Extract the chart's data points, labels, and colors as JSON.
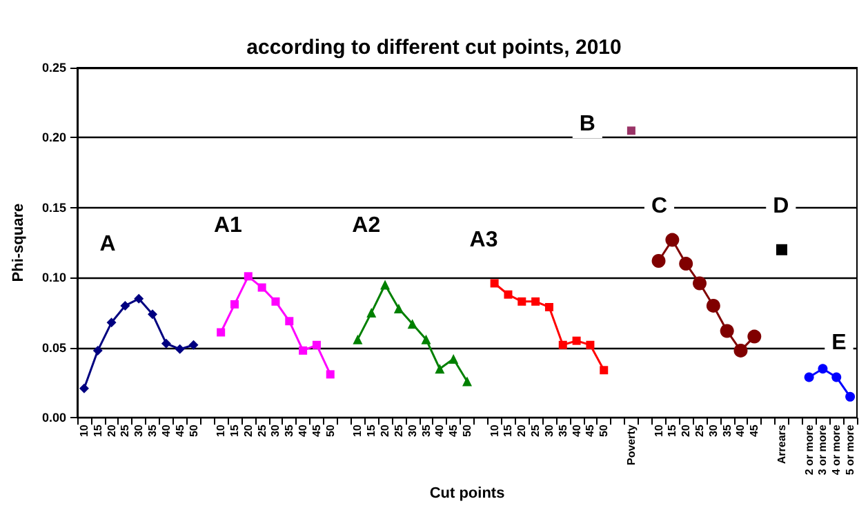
{
  "chart_data": {
    "type": "line",
    "title": "according to different cut points, 2010",
    "xlabel": "Cut points",
    "ylabel": "Phi-square",
    "categories": [
      "10",
      "15",
      "20",
      "25",
      "30",
      "35",
      "40",
      "45",
      "50",
      null,
      "10",
      "15",
      "20",
      "25",
      "30",
      "35",
      "40",
      "45",
      "50",
      null,
      "10",
      "15",
      "20",
      "25",
      "30",
      "35",
      "40",
      "45",
      "50",
      null,
      "10",
      "15",
      "20",
      "25",
      "30",
      "35",
      "40",
      "45",
      "50",
      null,
      "Poverty",
      null,
      "10",
      "15",
      "20",
      "25",
      "30",
      "35",
      "40",
      "45",
      null,
      "Arrears",
      null,
      "2 or more",
      "3 or more",
      "4 or more",
      "5 or more"
    ],
    "series": [
      {
        "color": "#000080",
        "marker": "diamond",
        "values": [
          0.021,
          0.048,
          0.068,
          0.08,
          0.085,
          0.074,
          0.053,
          0.049,
          0.052,
          null,
          null,
          null,
          null,
          null,
          null,
          null,
          null,
          null,
          null,
          null,
          null,
          null,
          null,
          null,
          null,
          null,
          null,
          null,
          null,
          null,
          null,
          null,
          null,
          null,
          null,
          null,
          null,
          null,
          null,
          null,
          null,
          null,
          null,
          null,
          null,
          null,
          null,
          null,
          null,
          null,
          null,
          null,
          null,
          null,
          null,
          null,
          null
        ]
      },
      {
        "color": "#ff00ff",
        "marker": "square",
        "values": [
          null,
          null,
          null,
          null,
          null,
          null,
          null,
          null,
          null,
          null,
          0.061,
          0.081,
          0.101,
          0.093,
          0.083,
          0.069,
          0.048,
          0.052,
          0.031,
          null,
          null,
          null,
          null,
          null,
          null,
          null,
          null,
          null,
          null,
          null,
          null,
          null,
          null,
          null,
          null,
          null,
          null,
          null,
          null,
          null,
          null,
          null,
          null,
          null,
          null,
          null,
          null,
          null,
          null,
          null,
          null,
          null,
          null,
          null,
          null,
          null,
          null
        ]
      },
      {
        "color": "#008000",
        "marker": "triangle",
        "values": [
          null,
          null,
          null,
          null,
          null,
          null,
          null,
          null,
          null,
          null,
          null,
          null,
          null,
          null,
          null,
          null,
          null,
          null,
          null,
          null,
          0.056,
          0.075,
          0.095,
          0.078,
          0.067,
          0.056,
          0.035,
          0.042,
          0.026,
          null,
          null,
          null,
          null,
          null,
          null,
          null,
          null,
          null,
          null,
          null,
          null,
          null,
          null,
          null,
          null,
          null,
          null,
          null,
          null,
          null,
          null,
          null,
          null,
          null,
          null,
          null,
          null
        ]
      },
      {
        "color": "#ff0000",
        "marker": "square",
        "values": [
          null,
          null,
          null,
          null,
          null,
          null,
          null,
          null,
          null,
          null,
          null,
          null,
          null,
          null,
          null,
          null,
          null,
          null,
          null,
          null,
          null,
          null,
          null,
          null,
          null,
          null,
          null,
          null,
          null,
          null,
          0.096,
          0.088,
          0.083,
          0.083,
          0.079,
          0.052,
          0.055,
          0.052,
          0.034,
          null,
          null,
          null,
          null,
          null,
          null,
          null,
          null,
          null,
          null,
          null,
          null,
          null,
          null,
          null,
          null,
          null,
          null
        ]
      },
      {
        "color": "#993366",
        "marker": "square",
        "values": [
          null,
          null,
          null,
          null,
          null,
          null,
          null,
          null,
          null,
          null,
          null,
          null,
          null,
          null,
          null,
          null,
          null,
          null,
          null,
          null,
          null,
          null,
          null,
          null,
          null,
          null,
          null,
          null,
          null,
          null,
          null,
          null,
          null,
          null,
          null,
          null,
          null,
          null,
          null,
          null,
          0.205,
          null,
          null,
          null,
          null,
          null,
          null,
          null,
          null,
          null,
          null,
          null,
          null,
          null,
          null,
          null,
          null
        ]
      },
      {
        "color": "#800000",
        "marker": "circle",
        "values": [
          null,
          null,
          null,
          null,
          null,
          null,
          null,
          null,
          null,
          null,
          null,
          null,
          null,
          null,
          null,
          null,
          null,
          null,
          null,
          null,
          null,
          null,
          null,
          null,
          null,
          null,
          null,
          null,
          null,
          null,
          null,
          null,
          null,
          null,
          null,
          null,
          null,
          null,
          null,
          null,
          null,
          null,
          0.112,
          0.127,
          0.11,
          0.096,
          0.08,
          0.062,
          0.048,
          0.058,
          null,
          null,
          null,
          null,
          null,
          null,
          null
        ]
      },
      {
        "color": "#000000",
        "marker": "square",
        "values": [
          null,
          null,
          null,
          null,
          null,
          null,
          null,
          null,
          null,
          null,
          null,
          null,
          null,
          null,
          null,
          null,
          null,
          null,
          null,
          null,
          null,
          null,
          null,
          null,
          null,
          null,
          null,
          null,
          null,
          null,
          null,
          null,
          null,
          null,
          null,
          null,
          null,
          null,
          null,
          null,
          null,
          null,
          null,
          null,
          null,
          null,
          null,
          null,
          null,
          null,
          null,
          0.12,
          null,
          null,
          null,
          null,
          null
        ]
      },
      {
        "color": "#0000ff",
        "marker": "circle",
        "values": [
          null,
          null,
          null,
          null,
          null,
          null,
          null,
          null,
          null,
          null,
          null,
          null,
          null,
          null,
          null,
          null,
          null,
          null,
          null,
          null,
          null,
          null,
          null,
          null,
          null,
          null,
          null,
          null,
          null,
          null,
          null,
          null,
          null,
          null,
          null,
          null,
          null,
          null,
          null,
          null,
          null,
          null,
          null,
          null,
          null,
          null,
          null,
          null,
          null,
          null,
          null,
          null,
          null,
          0.029,
          0.035,
          0.029,
          0.015
        ]
      }
    ],
    "ylim": [
      0,
      0.25
    ],
    "yticks": [
      {
        "value": 0,
        "label": "0.00"
      },
      {
        "value": 0.05,
        "label": "0.05"
      },
      {
        "value": 0.1,
        "label": "0.10"
      },
      {
        "value": 0.15,
        "label": "0.15"
      },
      {
        "value": 0.2,
        "label": "0.20"
      },
      {
        "value": 0.25,
        "label": "0.25"
      }
    ],
    "grid": "y",
    "annotations": [
      "A",
      "A1",
      "A2",
      "A3",
      "B",
      "C",
      "D",
      "E"
    ]
  }
}
